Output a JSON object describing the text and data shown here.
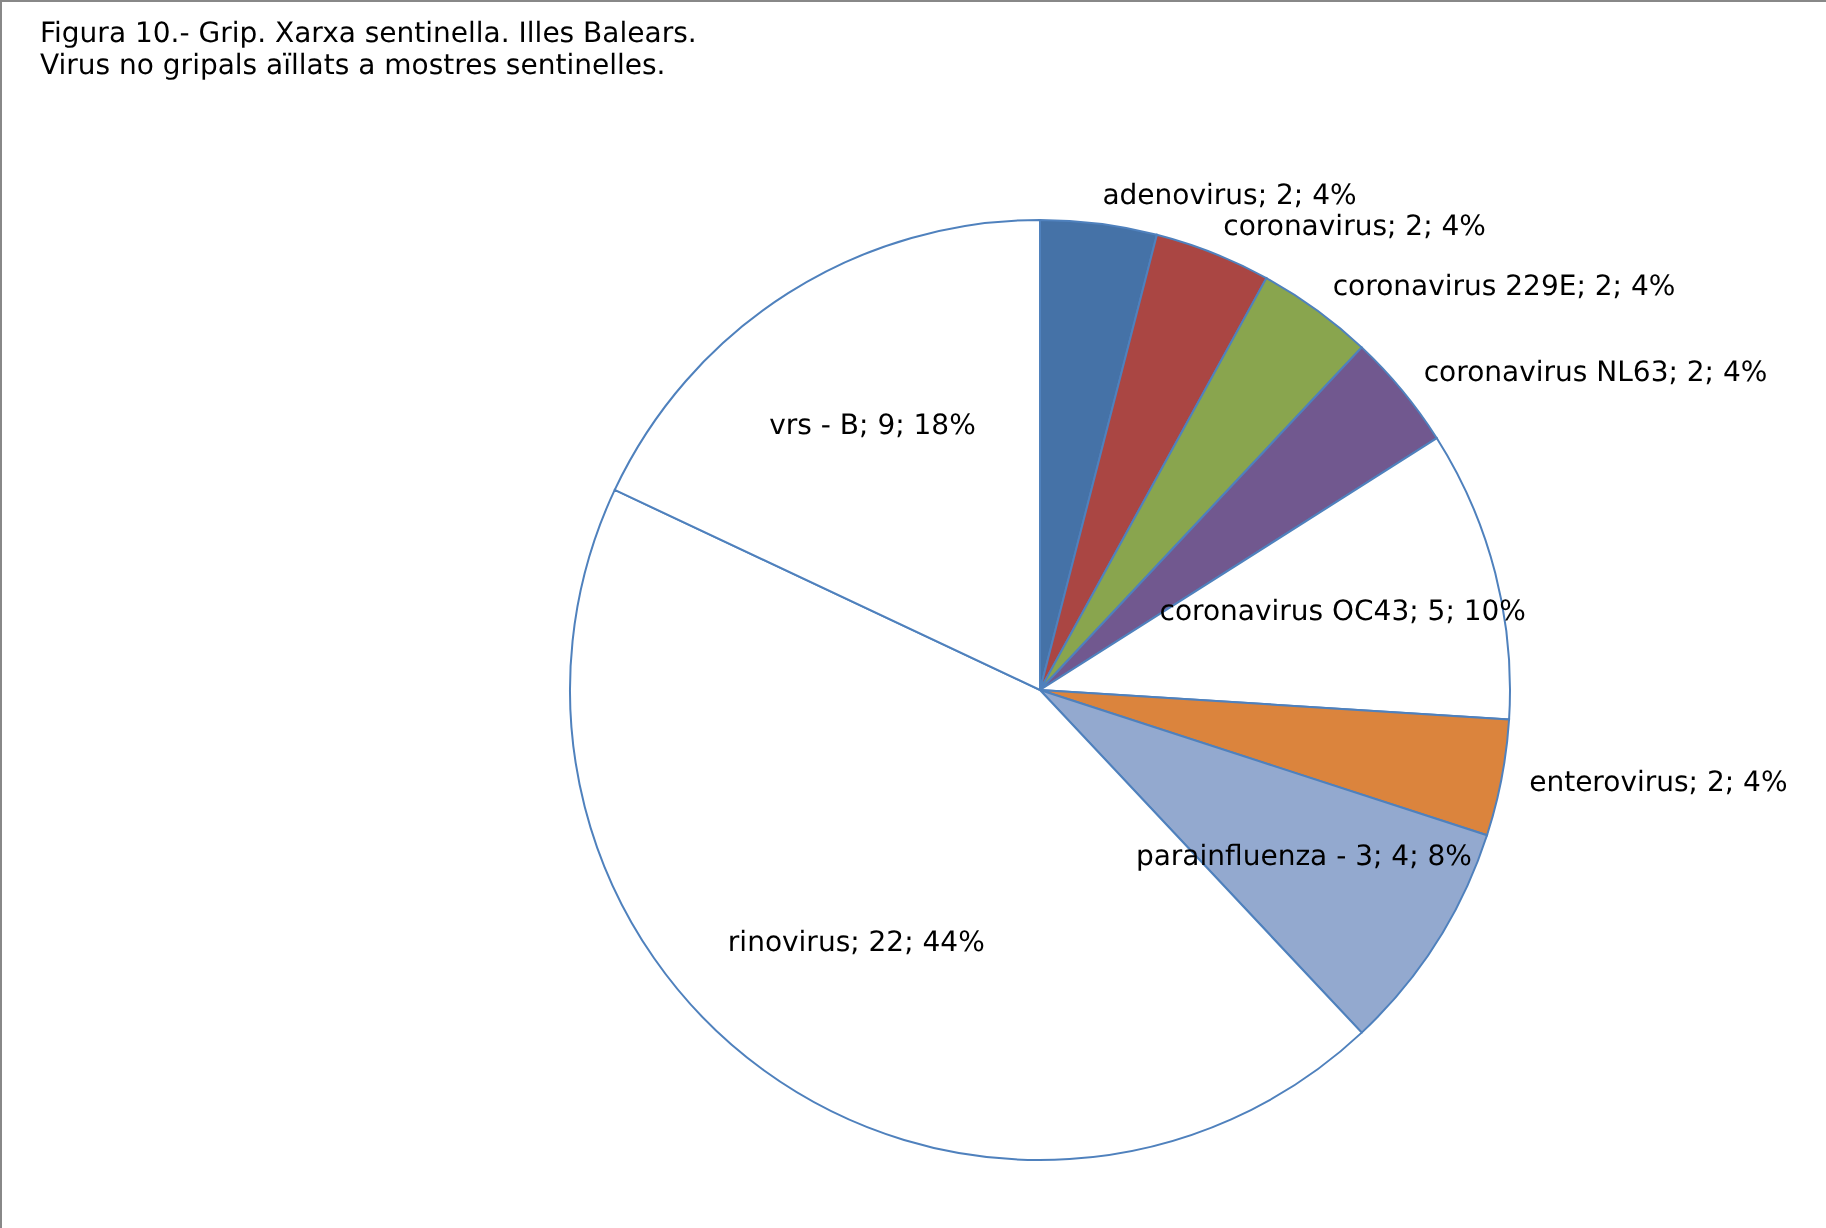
{
  "chart_data": {
    "type": "pie",
    "title": [
      "Figura 10.-  Grip. Xarxa sentinella. Illes Balears.",
      "  Virus no gripals aïllats a mostres sentinelles."
    ],
    "categories": [
      "adenovirus",
      "coronavirus",
      "coronavirus 229E",
      "coronavirus NL63",
      "coronavirus OC43",
      "enterovirus",
      "parainfluenza - 3",
      "rinovirus",
      "vrs - B"
    ],
    "values": [
      2,
      2,
      2,
      2,
      5,
      2,
      4,
      22,
      9
    ],
    "value_labels": [
      "2; 4%",
      "2; 4%",
      "2; 4%",
      "2; 4%",
      "5; 10%",
      "2; 4%",
      "4; 8%",
      "22; 44%",
      "9; 18%"
    ],
    "colors": [
      "#4572a7",
      "#aa4643",
      "#89a54e",
      "#71588f",
      "#ffffff",
      "#db843d",
      "#93a9cf",
      "#ffffff",
      "#ffffff"
    ],
    "legend": false
  }
}
